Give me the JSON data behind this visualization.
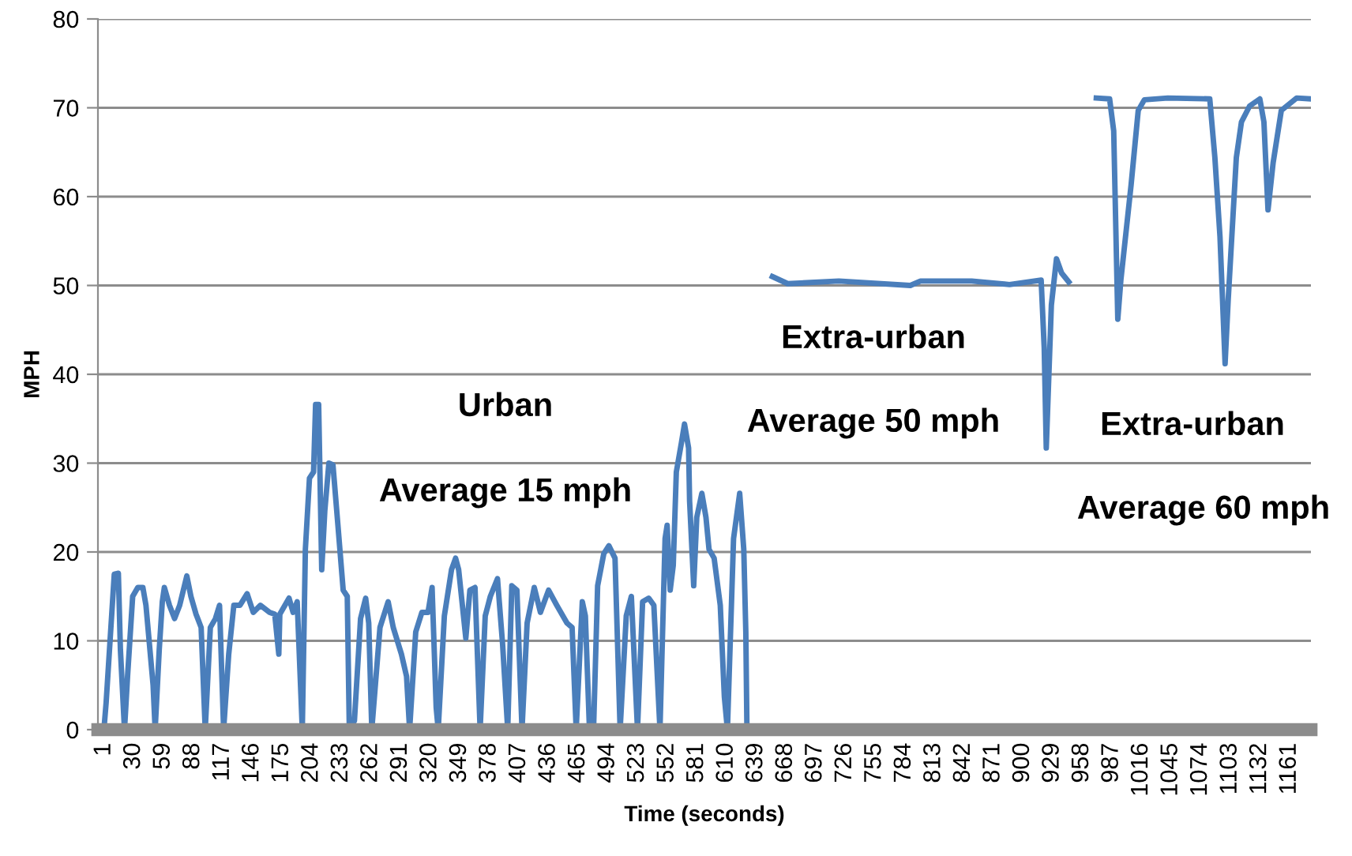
{
  "chart_data": {
    "type": "line",
    "xlabel": "Time (seconds)",
    "ylabel": "MPH",
    "xlim": [
      -5,
      1182
    ],
    "ylim": [
      0,
      80
    ],
    "xticks": [
      1,
      30,
      59,
      88,
      117,
      146,
      175,
      204,
      233,
      262,
      291,
      320,
      349,
      378,
      407,
      436,
      465,
      494,
      523,
      552,
      581,
      610,
      639,
      668,
      697,
      726,
      755,
      784,
      813,
      842,
      871,
      900,
      929,
      958,
      987,
      1016,
      1045,
      1074,
      1103,
      1132,
      1161
    ],
    "yticks": [
      0,
      10,
      20,
      30,
      40,
      50,
      60,
      70,
      80
    ],
    "grid": "y",
    "marker": "none",
    "line_style": "solid",
    "series": [
      {
        "color": "#4a7ebb",
        "x": [
          1,
          3,
          11,
          15,
          17,
          21,
          24,
          29,
          34,
          39,
          42,
          49,
          51,
          55,
          58,
          60,
          65,
          70,
          75,
          82,
          86,
          91,
          96,
          100,
          105,
          110,
          114,
          118,
          123,
          128,
          134,
          141,
          147,
          154,
          163,
          168,
          172,
          173,
          182,
          186,
          190,
          195,
          198,
          202,
          206,
          208,
          211,
          214,
          217,
          221,
          225,
          230,
          235,
          239,
          241,
          246,
          252,
          257,
          260,
          263,
          271,
          279,
          284,
          292,
          297,
          300,
          306,
          312,
          318,
          322,
          326,
          328,
          334,
          341,
          345,
          348,
          355,
          359,
          364,
          369,
          374,
          379,
          386,
          391,
          396,
          400,
          405,
          410,
          415,
          422,
          428,
          436,
          444,
          454,
          459,
          463,
          469,
          472,
          476,
          480,
          484,
          490,
          495,
          501,
          506,
          512,
          517,
          523,
          528,
          534,
          539,
          545,
          550,
          552,
          555,
          558,
          561,
          566,
          569,
          573,
          574,
          578,
          581,
          586,
          590,
          593,
          598,
          604,
          608,
          611,
          617,
          623,
          627,
          629,
          630,
          642,
          655,
          670,
          720,
          790,
          800,
          850,
          887,
          918,
          921,
          923,
          928,
          933,
          938,
          945,
          958,
          972,
          985,
          989,
          993,
          996,
          1006,
          1013,
          1019,
          1042,
          1083,
          1088,
          1093,
          1098,
          1101,
          1109,
          1114,
          1122,
          1132,
          1136,
          1140,
          1145,
          1153,
          1168,
          1181
        ],
        "values": [
          0.2,
          3,
          17.5,
          17.6,
          9,
          0,
          6,
          15,
          16,
          16,
          14,
          5,
          0,
          9,
          14.4,
          16,
          14,
          12.5,
          14,
          17.3,
          15,
          13,
          11.5,
          0,
          11.5,
          12.5,
          14,
          0,
          8.5,
          14,
          14,
          15.3,
          13.2,
          14,
          13.2,
          13,
          8.5,
          13,
          14.8,
          13.2,
          14.4,
          0,
          20.3,
          28.3,
          29,
          36.6,
          36.6,
          18,
          24.6,
          30,
          29.8,
          22.8,
          15.7,
          15,
          0,
          1,
          12.5,
          14.8,
          12,
          0,
          11.5,
          14.4,
          11.5,
          8.5,
          6,
          0,
          11,
          13.2,
          13.2,
          16,
          2.5,
          0,
          12.8,
          18,
          19.3,
          18,
          10.3,
          15.7,
          16,
          0,
          12.8,
          15,
          17,
          9.6,
          0,
          16.2,
          15.7,
          0,
          12,
          16,
          13.2,
          15.7,
          14,
          12,
          11.5,
          0,
          14.4,
          12.8,
          0,
          0,
          16.2,
          19.8,
          20.7,
          19.3,
          0,
          12.8,
          15,
          0,
          14.4,
          14.8,
          14,
          0,
          21.5,
          23,
          15.7,
          18.5,
          29,
          32.3,
          34.4,
          31.7,
          25.7,
          16.2,
          23.9,
          26.6,
          23.9,
          20.3,
          19.3,
          14,
          3.7,
          0,
          21.5,
          26.6,
          20.3,
          11,
          1,
          null,
          51,
          50.2,
          50.5,
          50,
          50.5,
          50.5,
          50.1,
          50.6,
          43,
          31.7,
          47.8,
          53,
          51.4,
          50.4,
          null,
          71.1,
          71,
          67.4,
          46.2,
          50.6,
          61.3,
          69.7,
          70.9,
          71.1,
          71,
          64.4,
          55.5,
          41.2,
          48.3,
          64.4,
          68.4,
          70.2,
          71,
          68.4,
          58.5,
          63.8,
          69.7,
          71.1,
          71
        ]
      }
    ],
    "annotations": [
      "Urban",
      "Average 15 mph",
      "Extra-urban",
      "Average 50 mph",
      "Extra-urban",
      "Average 60 mph"
    ]
  }
}
